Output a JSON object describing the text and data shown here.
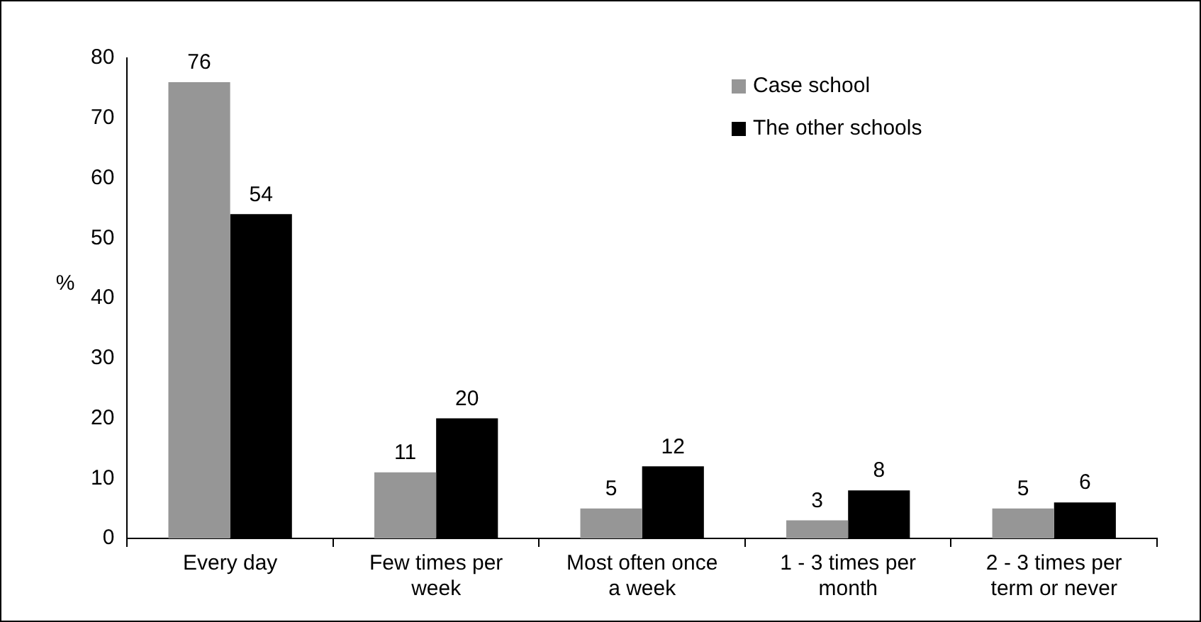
{
  "chart_data": {
    "type": "bar",
    "ylabel": "%",
    "categories": [
      "Every day",
      "Few times per week",
      "Most often once a week",
      "1 - 3 times per month",
      "2 - 3 times per term or never"
    ],
    "series": [
      {
        "name": "Case school",
        "color": "#969696",
        "values": [
          76,
          11,
          5,
          3,
          5
        ]
      },
      {
        "name": "The other schools",
        "color": "#000000",
        "values": [
          54,
          20,
          12,
          8,
          6
        ]
      }
    ],
    "ylim": [
      0,
      80
    ],
    "yticks": [
      0,
      10,
      20,
      30,
      40,
      50,
      60,
      70,
      80
    ],
    "grid": false,
    "legend": "top right",
    "data_labels": true
  }
}
